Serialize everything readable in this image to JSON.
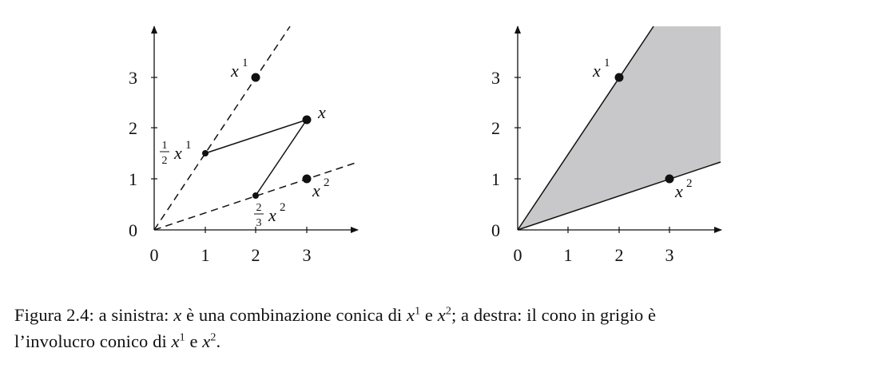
{
  "left_panel": {
    "x_ticks": [
      "0",
      "1",
      "2",
      "3"
    ],
    "y_ticks": [
      "0",
      "1",
      "2",
      "3"
    ],
    "labels": {
      "x1": "x",
      "x1_sup": "1",
      "x": "x",
      "x2": "x",
      "x2_sup": "2",
      "half_num": "1",
      "half_den": "2",
      "half_var": "x",
      "half_sup": "1",
      "twothirds_num": "2",
      "twothirds_den": "3",
      "twothirds_var": "x",
      "twothirds_sup": "2"
    }
  },
  "right_panel": {
    "x_ticks": [
      "0",
      "1",
      "2",
      "3"
    ],
    "y_ticks": [
      "0",
      "1",
      "2",
      "3"
    ],
    "labels": {
      "x1": "x",
      "x1_sup": "1",
      "x2": "x",
      "x2_sup": "2"
    },
    "fill_color": "#c8c8ca"
  },
  "caption": {
    "line1": {
      "a": "Figura 2.4: a sinistra: ",
      "b": "x",
      "c": " è una combinazione conica di ",
      "d": "x",
      "d_sup": "1",
      "e": " e ",
      "f": "x",
      "f_sup": "2",
      "g": "; a destra: il cono in grigio è"
    },
    "line2": {
      "a": "l’involucro conico di ",
      "b": "x",
      "b_sup": "1",
      "c": " e ",
      "d": "x",
      "d_sup": "2",
      "e": "."
    }
  }
}
